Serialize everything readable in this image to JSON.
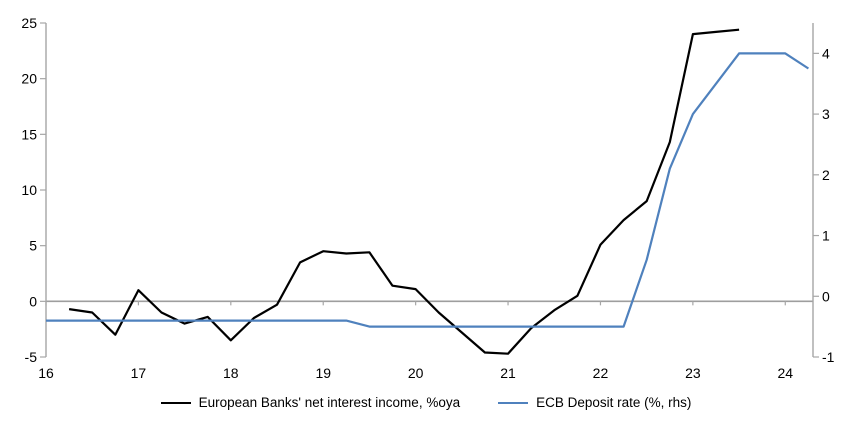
{
  "chart_data": {
    "type": "line",
    "title": "",
    "x_axis": {
      "ticks": [
        16,
        17,
        18,
        19,
        20,
        21,
        22,
        23,
        24
      ],
      "range": [
        16,
        24.3
      ]
    },
    "left_axis": {
      "ticks": [
        25,
        20,
        15,
        10,
        5,
        0,
        -5
      ],
      "range": [
        -5,
        25
      ]
    },
    "right_axis": {
      "ticks": [
        4,
        3,
        2,
        1,
        0,
        -1
      ],
      "range": [
        -1,
        4.5
      ]
    },
    "grid": "zero-line-only",
    "legend_position": "bottom",
    "series": [
      {
        "name": "European Banks' net interest income, %oya",
        "axis": "left",
        "color": "#000000",
        "x": [
          16.25,
          16.5,
          16.75,
          17.0,
          17.25,
          17.5,
          17.75,
          18.0,
          18.25,
          18.5,
          18.75,
          19.0,
          19.25,
          19.5,
          19.75,
          20.0,
          20.25,
          20.5,
          20.75,
          21.0,
          21.25,
          21.5,
          21.75,
          22.0,
          22.25,
          22.5,
          22.75,
          23.0,
          23.25,
          23.5
        ],
        "values": [
          -0.7,
          -1.0,
          -3.0,
          1.0,
          -1.0,
          -2.0,
          -1.4,
          -3.5,
          -1.5,
          -0.3,
          3.5,
          4.5,
          4.3,
          4.4,
          1.4,
          1.1,
          -1.0,
          -2.8,
          -4.6,
          -4.7,
          -2.4,
          -0.8,
          0.5,
          5.1,
          7.3,
          9.0,
          14.3,
          24.0,
          24.2,
          24.4
        ]
      },
      {
        "name": "ECB Deposit rate (%, rhs)",
        "axis": "right",
        "color": "#4F81BD",
        "x": [
          16.0,
          19.25,
          19.5,
          22.25,
          22.5,
          22.75,
          23.0,
          23.5,
          24.0,
          24.25
        ],
        "values": [
          -0.4,
          -0.4,
          -0.5,
          -0.5,
          0.6,
          2.1,
          3.0,
          4.0,
          4.0,
          3.75
        ]
      }
    ]
  },
  "colors": {
    "background": "#FFFFFF",
    "axis": "#A6A6A6",
    "zero_line": "#9E9E9E",
    "text": "#000000",
    "series_nii": "#000000",
    "series_ecb": "#4F81BD"
  }
}
